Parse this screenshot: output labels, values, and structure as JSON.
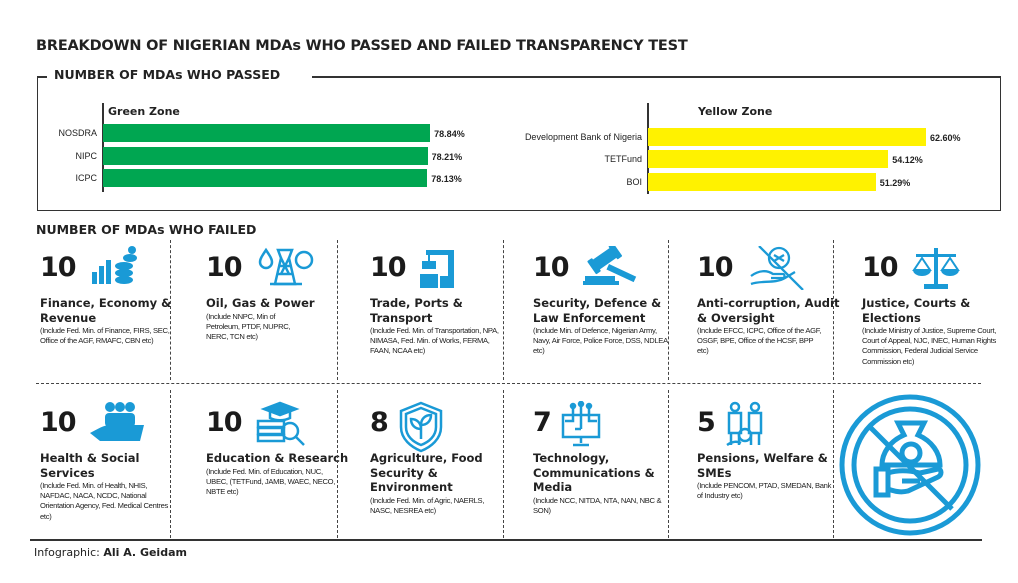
{
  "title": "BREAKDOWN OF NIGERIAN MDAs WHO PASSED AND FAILED TRANSPARENCY TEST",
  "passed_heading": "NUMBER OF MDAs WHO PASSED",
  "failed_heading": "NUMBER OF MDAs WHO FAILED",
  "colors": {
    "green": "#00a651",
    "yellow": "#fff200",
    "icon_blue": "#1a9ad6"
  },
  "chart_data": [
    {
      "type": "bar",
      "orientation": "horizontal",
      "title": "Green Zone",
      "categories": [
        "NOSDRA",
        "NIPC",
        "ICPC"
      ],
      "values": [
        78.84,
        78.21,
        78.13
      ],
      "labels": [
        "78.84%",
        "78.21%",
        "78.13%"
      ],
      "color": "#00a651"
    },
    {
      "type": "bar",
      "orientation": "horizontal",
      "title": "Yellow Zone",
      "categories": [
        "Development Bank of Nigeria",
        "TETFund",
        "BOI"
      ],
      "values": [
        62.6,
        54.12,
        51.29
      ],
      "labels": [
        "62.60%",
        "54.12%",
        "51.29%"
      ],
      "color": "#fff200"
    }
  ],
  "failed": [
    {
      "count": "10",
      "icon": "finance-chart-coins-icon",
      "title": "Finance, Economy & Revenue",
      "sub": "(Include Fed. Min. of Finance, FIRS, SEC, Office of the AGF, RMAFC, CBN etc)"
    },
    {
      "count": "10",
      "icon": "oil-gas-power-icon",
      "title": "Oil, Gas & Power",
      "sub": "(Include NNPC, Min of Petroleum, PTDF, NUPRC, NERC, TCN etc)"
    },
    {
      "count": "10",
      "icon": "port-crane-icon",
      "title": "Trade, Ports & Transport",
      "sub": "(Include Fed. Min. of Transportation, NPA, NIMASA, Fed. Min. of Works, FERMA, FAAN, NCAA etc)"
    },
    {
      "count": "10",
      "icon": "gavel-icon",
      "title": "Security, Defence & Law Enforcement",
      "sub": "(Include Min. of Defence, Nigerian Army, Navy, Air Force, Police Force, DSS, NDLEA etc)"
    },
    {
      "count": "10",
      "icon": "no-bribe-icon",
      "title": "Anti-corruption, Audit & Oversight",
      "sub": "(Include EFCC, ICPC, Office of the AGF, OSGF, BPE, Office of the HCSF, BPP etc)"
    },
    {
      "count": "10",
      "icon": "scales-of-justice-icon",
      "title": "Justice, Courts & Elections",
      "sub": "(Include Ministry of Justice, Supreme Court, Court of Appeal, NJC, INEC, Human Rights Commission, Federal Judicial Service Commission etc)"
    },
    {
      "count": "10",
      "icon": "people-care-icon",
      "title": "Health & Social Services",
      "sub": "(Include Fed. Min. of Health, NHIS, NAFDAC, NACA, NCDC, National Orientation Agency, Fed. Medical Centres etc)"
    },
    {
      "count": "10",
      "icon": "education-research-icon",
      "title": "Education & Research",
      "sub": "(Include Fed. Min. of Education, NUC, UBEC, (TETFund, JAMB, WAEC, NECO, NBTE etc)"
    },
    {
      "count": "8",
      "icon": "agriculture-shield-icon",
      "title": "Agriculture, Food Security & Environment",
      "sub": "(Include Fed. Min. of Agric, NAERLS, NASC, NESREA etc)"
    },
    {
      "count": "7",
      "icon": "technology-monitor-icon",
      "title": "Technology, Communications & Media",
      "sub": "(Include NCC, NITDA, NTA, NAN, NBC & SON)"
    },
    {
      "count": "5",
      "icon": "pensions-welfare-icon",
      "title": "Pensions, Welfare & SMEs",
      "sub": "(Include PENCOM, PTAD, SMEDAN, Bank of Industry etc)"
    }
  ],
  "footer": {
    "label": "Infographic:",
    "author": "Ali A. Geidam"
  }
}
